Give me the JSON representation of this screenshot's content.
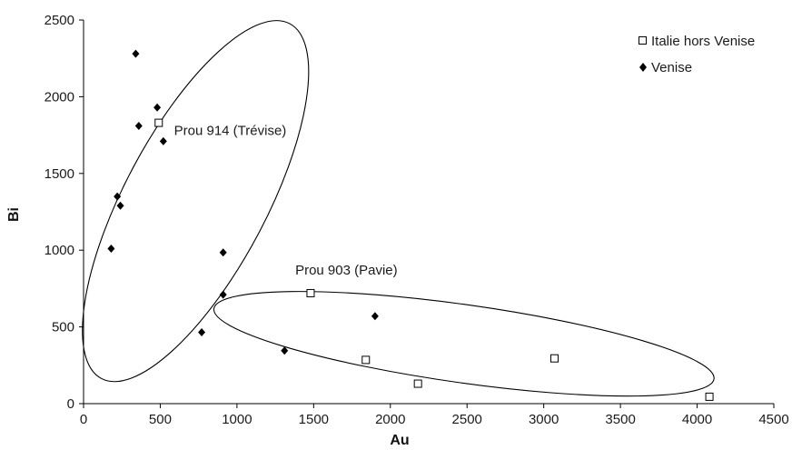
{
  "chart_data": {
    "type": "scatter",
    "title": "",
    "xlabel": "Au",
    "ylabel": "Bi",
    "xlim": [
      0,
      4500
    ],
    "ylim": [
      0,
      2500
    ],
    "xticks": [
      "0",
      "500",
      "1000",
      "1500",
      "2000",
      "2500",
      "3000",
      "3500",
      "4000",
      "4500"
    ],
    "yticks": [
      "0",
      "500",
      "1000",
      "1500",
      "2000",
      "2500"
    ],
    "grid": false,
    "legend": "top-right",
    "series": [
      {
        "name": "Italie hors Venise",
        "marker": "open-square",
        "color": "#000000",
        "points": [
          {
            "x": 490,
            "y": 1830
          },
          {
            "x": 1480,
            "y": 720
          },
          {
            "x": 1840,
            "y": 285
          },
          {
            "x": 2180,
            "y": 130
          },
          {
            "x": 3070,
            "y": 295
          },
          {
            "x": 4080,
            "y": 45
          }
        ]
      },
      {
        "name": "Venise",
        "marker": "filled-diamond",
        "color": "#000000",
        "points": [
          {
            "x": 340,
            "y": 2280
          },
          {
            "x": 480,
            "y": 1930
          },
          {
            "x": 360,
            "y": 1810
          },
          {
            "x": 520,
            "y": 1710
          },
          {
            "x": 220,
            "y": 1350
          },
          {
            "x": 240,
            "y": 1290
          },
          {
            "x": 180,
            "y": 1010
          },
          {
            "x": 910,
            "y": 985
          },
          {
            "x": 910,
            "y": 710
          },
          {
            "x": 770,
            "y": 465
          },
          {
            "x": 1310,
            "y": 345
          },
          {
            "x": 1900,
            "y": 570
          }
        ]
      }
    ],
    "annotations": [
      {
        "text": "Prou 914 (Trévise)",
        "x": 590,
        "y": 1780
      },
      {
        "text": "Prou 903 (Pavie)",
        "x": 1380,
        "y": 870
      }
    ],
    "ellipses": [
      {
        "cx": 730,
        "cy": 1320,
        "rx": 1230,
        "ry": 360,
        "angle_deg": -62
      },
      {
        "cx": 2480,
        "cy": 390,
        "rx": 1130,
        "ry": 165,
        "angle_deg": 8
      }
    ]
  }
}
